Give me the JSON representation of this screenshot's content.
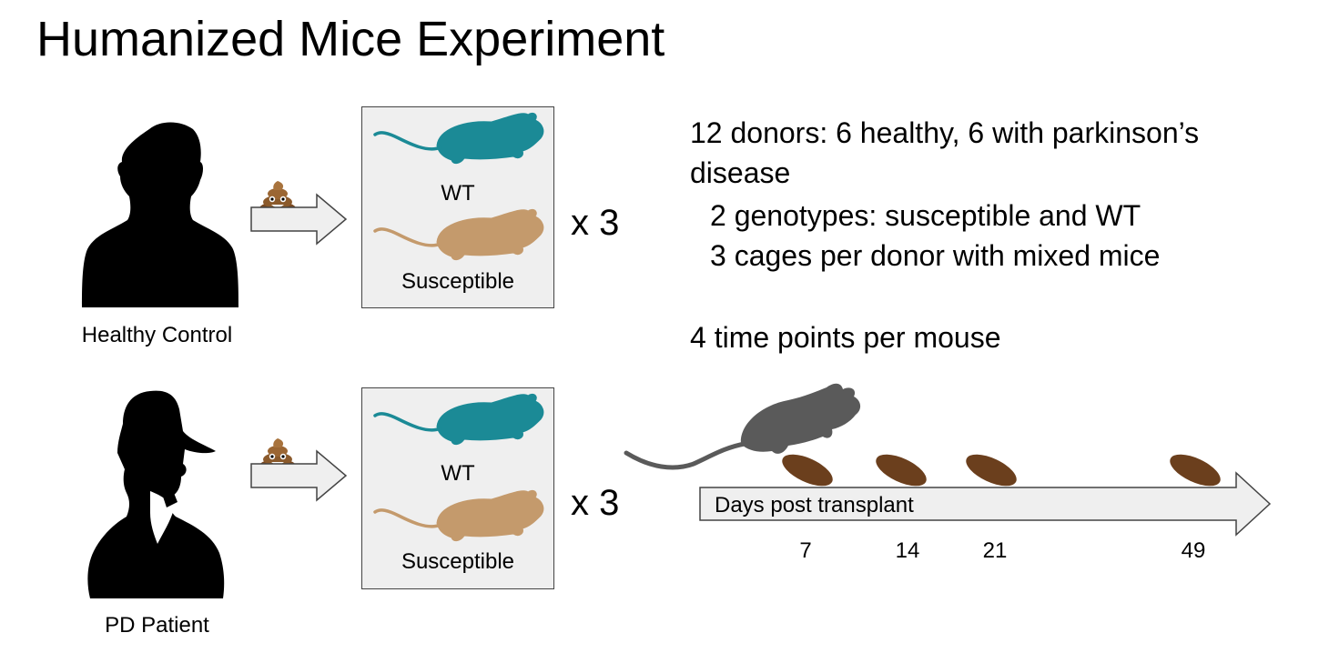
{
  "title": "Humanized Mice Experiment",
  "donors": [
    {
      "label": "Healthy Control"
    },
    {
      "label": "PD Patient"
    }
  ],
  "cage": {
    "wt_label": "WT",
    "susceptible_label": "Susceptible",
    "multiplier": "x 3"
  },
  "info": {
    "line1": "12 donors: 6 healthy, 6 with parkinson’s",
    "line2": "disease",
    "line3": "2 genotypes: susceptible and WT",
    "line4": "3 cages per donor with mixed mice",
    "line5": "4 time points per mouse"
  },
  "timeline": {
    "label": "Days post transplant",
    "time_points": [
      "7",
      "14",
      "21",
      "49"
    ]
  },
  "colors": {
    "wt_mouse": "#1b8a96",
    "susceptible_mouse": "#c49a6c",
    "timeline_mouse": "#5a5a5a",
    "pellet": "#6b3f1d",
    "cage_fill": "#efefef",
    "arrow_fill": "#efefef"
  },
  "icons": [
    "person-silhouette-icon",
    "hat-person-silhouette-icon",
    "poop-emoji-icon",
    "mouse-icon",
    "fecal-pellet-icon"
  ]
}
